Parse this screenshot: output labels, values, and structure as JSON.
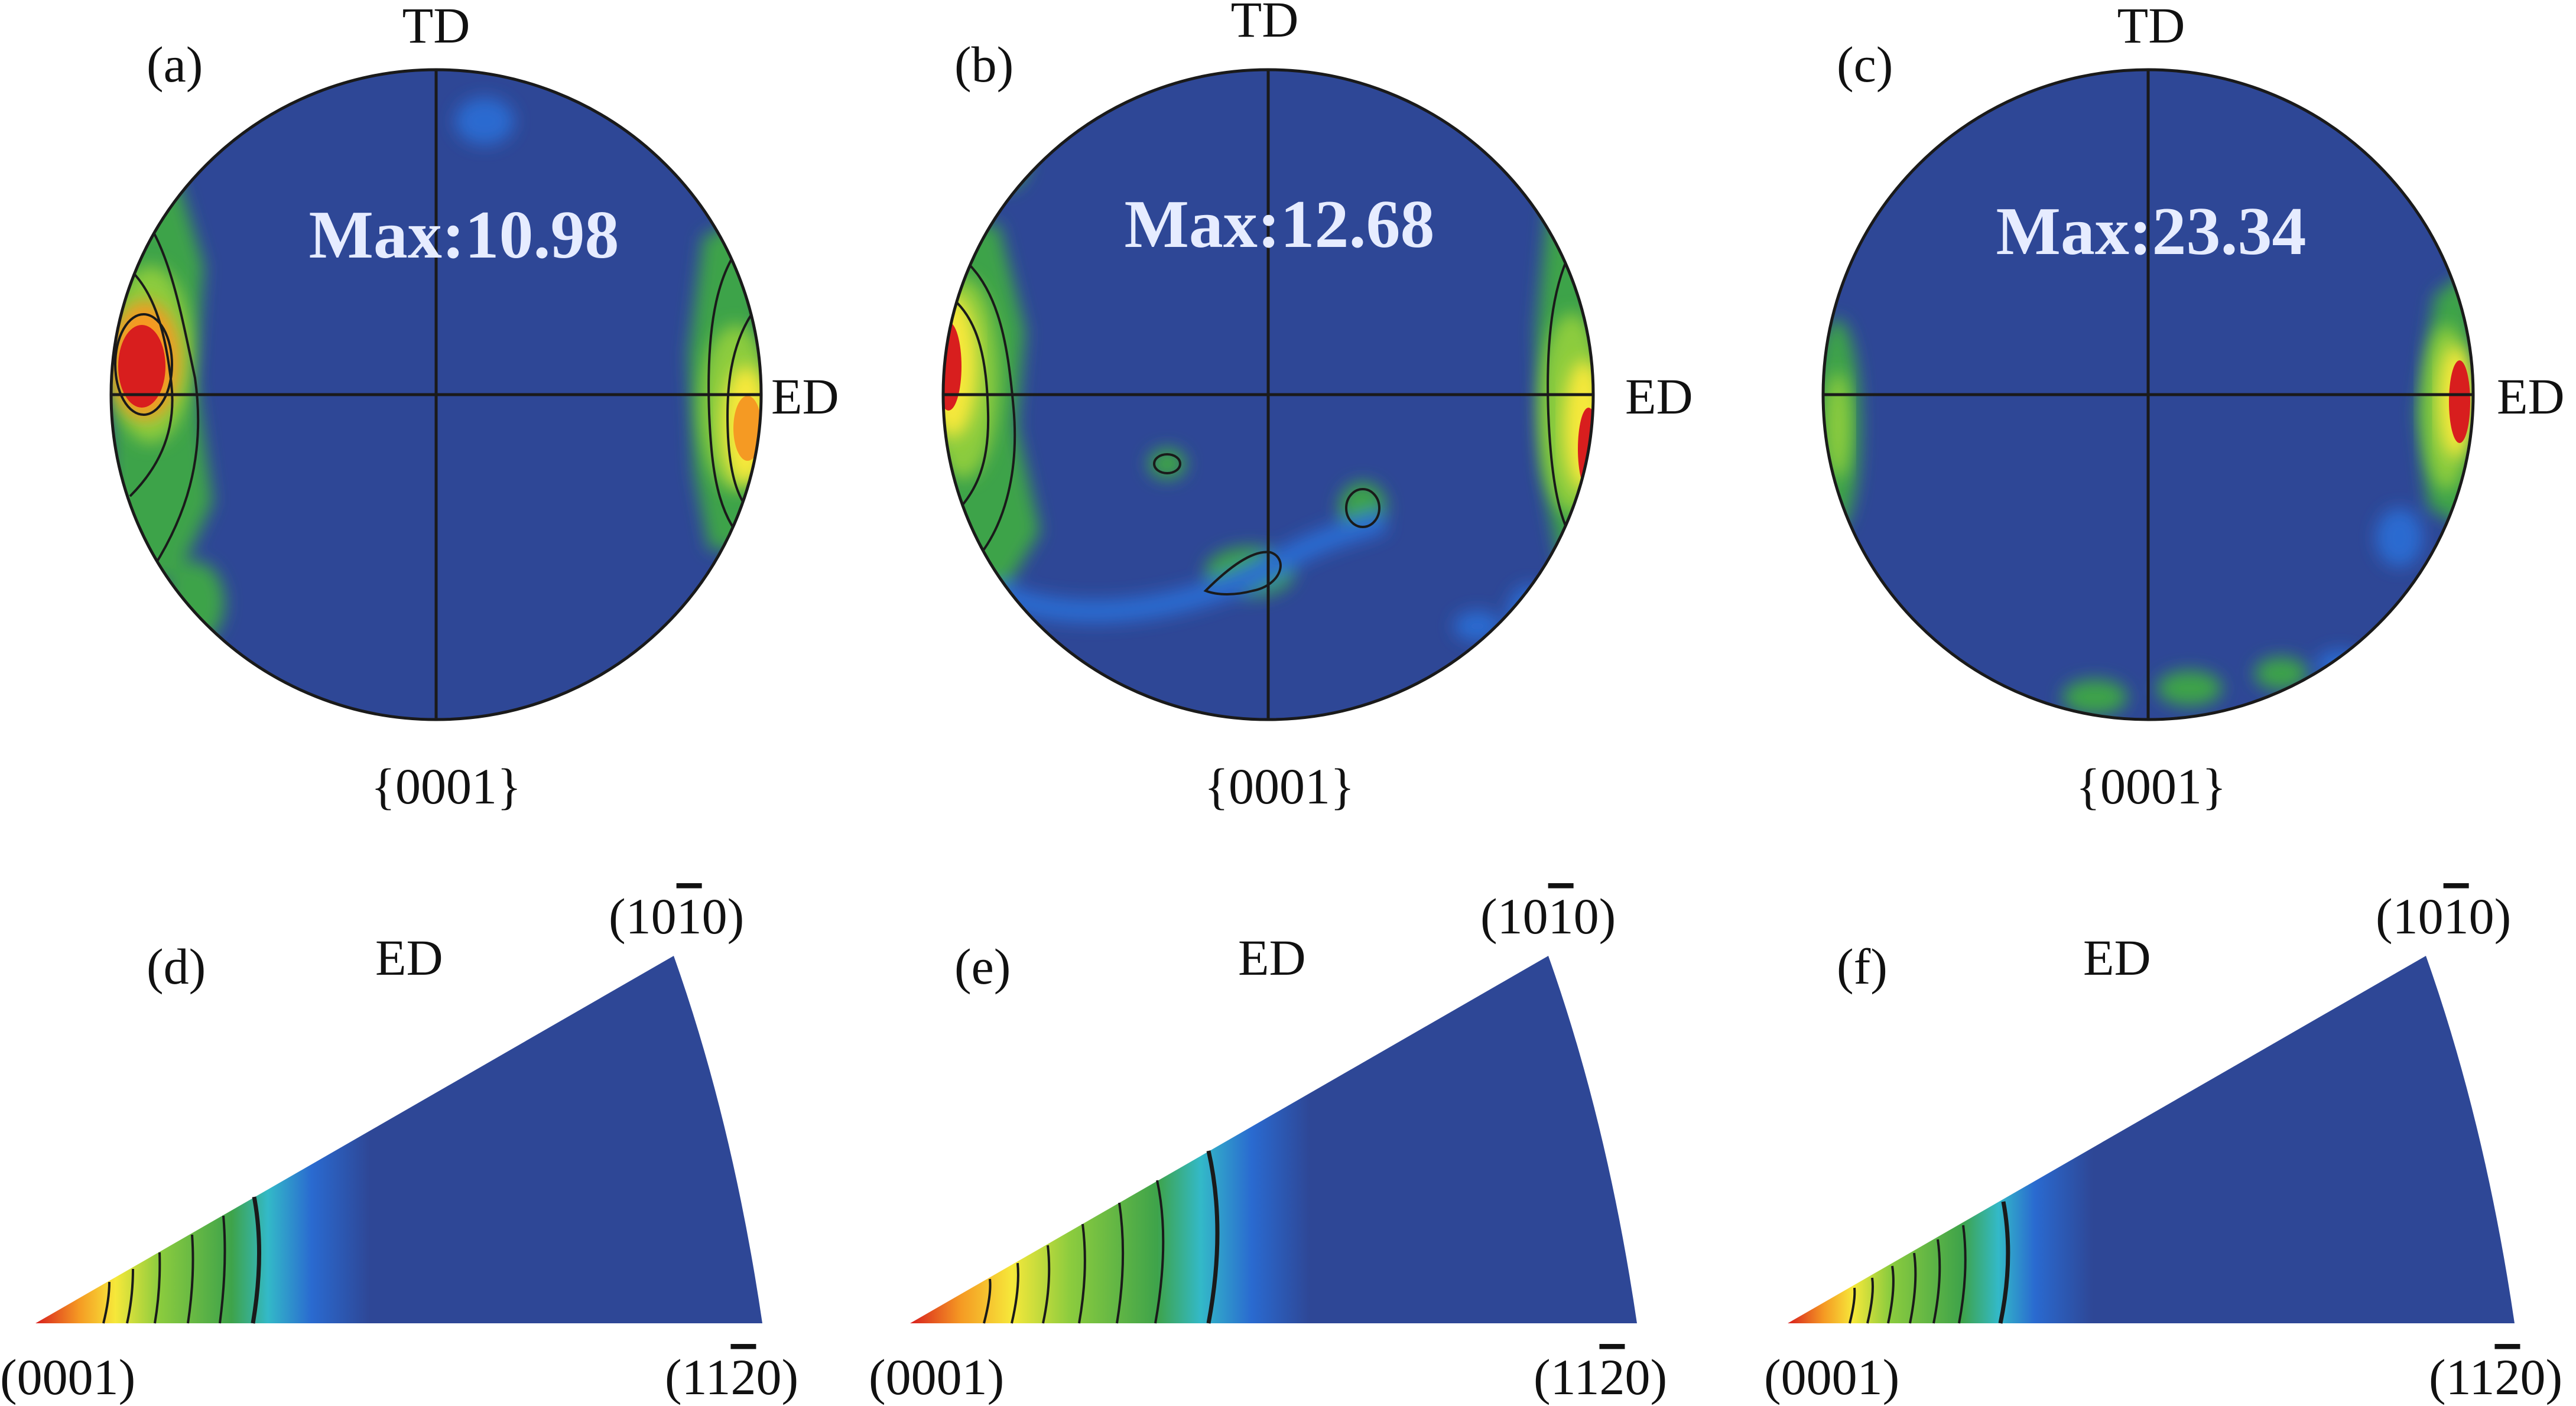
{
  "colors": {
    "background": "#ffffff",
    "low": "#2e4796",
    "mid_blue": "#2a6ad0",
    "cyan": "#33b9c8",
    "green": "#3ea34a",
    "light_green": "#8ccc3e",
    "yellow": "#f6e83a",
    "orange": "#f59a23",
    "red": "#d81e1e",
    "contour": "#1a1a1a"
  },
  "pole_figures": [
    {
      "id": "a",
      "panel_label": "(a)",
      "td_label": "TD",
      "ed_label": "ED",
      "max_label": "Max:10.98",
      "plane_label": "{0001}"
    },
    {
      "id": "b",
      "panel_label": "(b)",
      "td_label": "TD",
      "ed_label": "ED",
      "max_label": "Max:12.68",
      "plane_label": "{0001}"
    },
    {
      "id": "c",
      "panel_label": "(c)",
      "td_label": "TD",
      "ed_label": "ED",
      "max_label": "Max:23.34",
      "plane_label": "{0001}"
    }
  ],
  "inverse_pole_figures": [
    {
      "id": "d",
      "panel_label": "(d)",
      "direction_label": "ED",
      "corner_top": "(10",
      "corner_left": "(0001)",
      "corner_right": "(11",
      "bar_digit": "1",
      "bar_digit_right": "2",
      "suffix": "0)"
    },
    {
      "id": "e",
      "panel_label": "(e)",
      "direction_label": "ED",
      "corner_top": "(10",
      "corner_left": "(0001)",
      "corner_right": "(11",
      "bar_digit": "1",
      "bar_digit_right": "2",
      "suffix": "0)"
    },
    {
      "id": "f",
      "panel_label": "(f)",
      "direction_label": "ED",
      "corner_top": "(10",
      "corner_left": "(0001)",
      "corner_right": "(11",
      "bar_digit": "1",
      "bar_digit_right": "2",
      "suffix": "0)"
    }
  ]
}
